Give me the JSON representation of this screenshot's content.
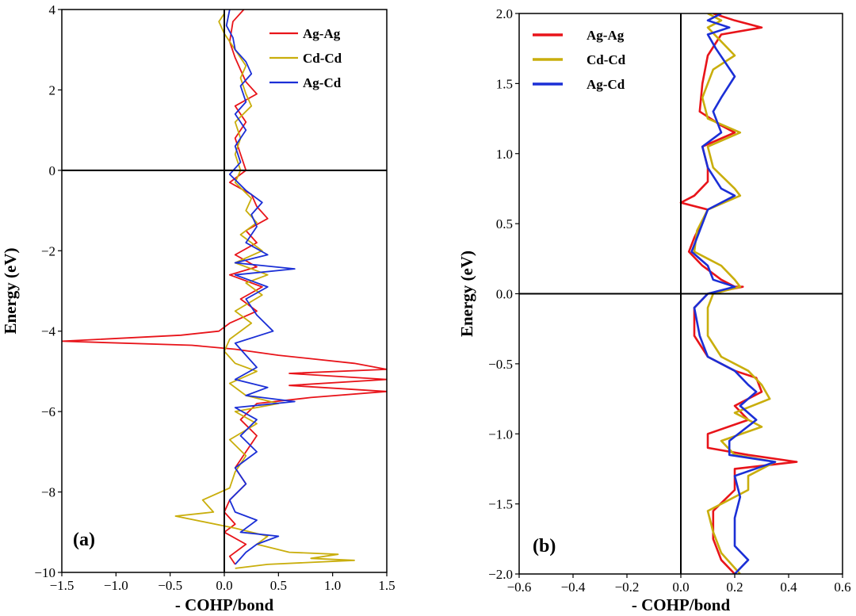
{
  "colors": {
    "Ag-Ag": "#e8141a",
    "Cd-Cd": "#c9ae0c",
    "Ag-Cd": "#1b2fd6"
  },
  "chart_data": [
    {
      "type": "line",
      "panel_label": "(a)",
      "xlabel": "- COHP/bond",
      "ylabel": "Energy (eV)",
      "xlim": [
        -1.5,
        1.5
      ],
      "ylim": [
        -10,
        4
      ],
      "xticks": [
        -1.5,
        -1.0,
        -0.5,
        0.0,
        0.5,
        1.0,
        1.5
      ],
      "xtick_labels": [
        "−1.5",
        "−1.0",
        "−0.5",
        "0.0",
        "0.5",
        "1.0",
        "1.5"
      ],
      "yticks": [
        -10,
        -8,
        -6,
        -4,
        -2,
        0,
        2,
        4
      ],
      "ytick_labels": [
        "−10",
        "−8",
        "−6",
        "−4",
        "−2",
        "0",
        "2",
        "4"
      ],
      "legend": [
        "Ag-Ag",
        "Cd-Cd",
        "Ag-Cd"
      ],
      "legend_position": "top-right",
      "series": [
        {
          "name": "Ag-Ag",
          "points": [
            [
              0.18,
              4.0
            ],
            [
              0.08,
              3.7
            ],
            [
              0.05,
              3.2
            ],
            [
              0.1,
              2.8
            ],
            [
              0.15,
              2.5
            ],
            [
              0.2,
              2.2
            ],
            [
              0.3,
              1.9
            ],
            [
              0.1,
              1.6
            ],
            [
              0.2,
              1.2
            ],
            [
              0.1,
              0.8
            ],
            [
              0.15,
              0.4
            ],
            [
              0.2,
              0.0
            ],
            [
              0.05,
              -0.3
            ],
            [
              0.25,
              -0.6
            ],
            [
              0.3,
              -0.9
            ],
            [
              0.4,
              -1.2
            ],
            [
              0.2,
              -1.5
            ],
            [
              0.3,
              -1.8
            ],
            [
              0.1,
              -2.1
            ],
            [
              0.3,
              -2.4
            ],
            [
              0.05,
              -2.6
            ],
            [
              0.35,
              -2.9
            ],
            [
              0.15,
              -3.2
            ],
            [
              0.3,
              -3.5
            ],
            [
              0.05,
              -3.8
            ],
            [
              -0.05,
              -4.0
            ],
            [
              -0.4,
              -4.1
            ],
            [
              -1.5,
              -4.25
            ],
            [
              -0.3,
              -4.35
            ],
            [
              0.1,
              -4.45
            ],
            [
              0.5,
              -4.6
            ],
            [
              1.2,
              -4.8
            ],
            [
              1.5,
              -4.95
            ],
            [
              0.6,
              -5.05
            ],
            [
              1.5,
              -5.2
            ],
            [
              0.6,
              -5.35
            ],
            [
              1.5,
              -5.5
            ],
            [
              0.8,
              -5.65
            ],
            [
              0.3,
              -5.8
            ],
            [
              0.15,
              -6.2
            ],
            [
              0.3,
              -6.6
            ],
            [
              0.2,
              -7.0
            ],
            [
              0.1,
              -7.4
            ],
            [
              0.2,
              -7.8
            ],
            [
              0.05,
              -8.2
            ],
            [
              0.0,
              -8.5
            ],
            [
              0.1,
              -8.8
            ],
            [
              0.0,
              -9.0
            ],
            [
              0.2,
              -9.3
            ],
            [
              0.05,
              -9.6
            ],
            [
              0.1,
              -9.8
            ]
          ]
        },
        {
          "name": "Cd-Cd",
          "points": [
            [
              0.0,
              3.9
            ],
            [
              -0.05,
              3.7
            ],
            [
              0.0,
              3.4
            ],
            [
              0.1,
              3.0
            ],
            [
              0.2,
              2.6
            ],
            [
              0.15,
              2.3
            ],
            [
              0.2,
              1.9
            ],
            [
              0.25,
              1.6
            ],
            [
              0.1,
              1.2
            ],
            [
              0.15,
              0.8
            ],
            [
              0.1,
              0.4
            ],
            [
              0.15,
              0.0
            ],
            [
              0.1,
              -0.3
            ],
            [
              0.25,
              -0.7
            ],
            [
              0.2,
              -1.0
            ],
            [
              0.3,
              -1.3
            ],
            [
              0.15,
              -1.6
            ],
            [
              0.35,
              -2.0
            ],
            [
              0.1,
              -2.3
            ],
            [
              0.4,
              -2.6
            ],
            [
              0.2,
              -2.8
            ],
            [
              0.35,
              -3.1
            ],
            [
              0.1,
              -3.5
            ],
            [
              0.25,
              -3.8
            ],
            [
              0.05,
              -4.2
            ],
            [
              0.0,
              -4.5
            ],
            [
              0.1,
              -4.8
            ],
            [
              0.3,
              -5.0
            ],
            [
              0.05,
              -5.3
            ],
            [
              0.2,
              -5.6
            ],
            [
              0.5,
              -5.8
            ],
            [
              0.1,
              -6.0
            ],
            [
              0.3,
              -6.3
            ],
            [
              0.05,
              -6.7
            ],
            [
              0.2,
              -7.1
            ],
            [
              0.1,
              -7.5
            ],
            [
              0.05,
              -7.9
            ],
            [
              -0.2,
              -8.2
            ],
            [
              -0.1,
              -8.5
            ],
            [
              -0.45,
              -8.6
            ],
            [
              0.1,
              -8.9
            ],
            [
              0.4,
              -9.1
            ],
            [
              0.3,
              -9.3
            ],
            [
              0.6,
              -9.5
            ],
            [
              1.05,
              -9.55
            ],
            [
              0.8,
              -9.65
            ],
            [
              1.2,
              -9.7
            ],
            [
              0.4,
              -9.8
            ],
            [
              0.1,
              -9.9
            ]
          ]
        },
        {
          "name": "Ag-Cd",
          "points": [
            [
              0.05,
              4.0
            ],
            [
              0.02,
              3.6
            ],
            [
              0.08,
              3.3
            ],
            [
              0.1,
              3.0
            ],
            [
              0.2,
              2.7
            ],
            [
              0.25,
              2.4
            ],
            [
              0.15,
              2.1
            ],
            [
              0.2,
              1.7
            ],
            [
              0.1,
              1.4
            ],
            [
              0.2,
              1.0
            ],
            [
              0.1,
              0.6
            ],
            [
              0.15,
              0.2
            ],
            [
              0.05,
              -0.1
            ],
            [
              0.2,
              -0.5
            ],
            [
              0.35,
              -0.8
            ],
            [
              0.25,
              -1.1
            ],
            [
              0.3,
              -1.4
            ],
            [
              0.2,
              -1.8
            ],
            [
              0.4,
              -2.1
            ],
            [
              0.1,
              -2.3
            ],
            [
              0.65,
              -2.45
            ],
            [
              0.1,
              -2.6
            ],
            [
              0.4,
              -2.9
            ],
            [
              0.2,
              -3.2
            ],
            [
              0.3,
              -3.6
            ],
            [
              0.45,
              -4.0
            ],
            [
              0.1,
              -4.3
            ],
            [
              0.2,
              -4.6
            ],
            [
              0.3,
              -4.9
            ],
            [
              0.1,
              -5.2
            ],
            [
              0.4,
              -5.4
            ],
            [
              0.2,
              -5.6
            ],
            [
              0.65,
              -5.75
            ],
            [
              0.1,
              -5.9
            ],
            [
              0.3,
              -6.2
            ],
            [
              0.15,
              -6.6
            ],
            [
              0.3,
              -7.0
            ],
            [
              0.1,
              -7.4
            ],
            [
              0.2,
              -7.8
            ],
            [
              0.05,
              -8.2
            ],
            [
              0.1,
              -8.5
            ],
            [
              0.3,
              -8.7
            ],
            [
              0.15,
              -9.0
            ],
            [
              0.5,
              -9.1
            ],
            [
              0.3,
              -9.3
            ],
            [
              0.2,
              -9.5
            ],
            [
              0.1,
              -9.8
            ]
          ]
        }
      ]
    },
    {
      "type": "line",
      "panel_label": "(b)",
      "xlabel": "- COHP/bond",
      "ylabel": "Energy (eV)",
      "xlim": [
        -0.6,
        0.6
      ],
      "ylim": [
        -2.0,
        2.0
      ],
      "xticks": [
        -0.6,
        -0.4,
        -0.2,
        0.0,
        0.2,
        0.4,
        0.6
      ],
      "xtick_labels": [
        "−0.6",
        "−0.4",
        "−0.2",
        "0.0",
        "0.2",
        "0.4",
        "0.6"
      ],
      "yticks": [
        -2.0,
        -1.5,
        -1.0,
        -0.5,
        0.0,
        0.5,
        1.0,
        1.5,
        2.0
      ],
      "ytick_labels": [
        "−2.0",
        "−1.5",
        "−1.0",
        "−0.5",
        "0.0",
        "0.5",
        "1.0",
        "1.5",
        "2.0"
      ],
      "legend": [
        "Ag-Ag",
        "Cd-Cd",
        "Ag-Cd"
      ],
      "legend_position": "top-left",
      "series": [
        {
          "name": "Ag-Ag",
          "points": [
            [
              0.12,
              2.0
            ],
            [
              0.2,
              1.95
            ],
            [
              0.3,
              1.9
            ],
            [
              0.15,
              1.85
            ],
            [
              0.1,
              1.7
            ],
            [
              0.08,
              1.5
            ],
            [
              0.07,
              1.3
            ],
            [
              0.15,
              1.2
            ],
            [
              0.2,
              1.15
            ],
            [
              0.08,
              1.05
            ],
            [
              0.1,
              0.9
            ],
            [
              0.1,
              0.8
            ],
            [
              0.05,
              0.7
            ],
            [
              0.0,
              0.65
            ],
            [
              0.1,
              0.6
            ],
            [
              0.05,
              0.4
            ],
            [
              0.03,
              0.3
            ],
            [
              0.08,
              0.2
            ],
            [
              0.15,
              0.1
            ],
            [
              0.2,
              0.05
            ],
            [
              0.23,
              0.05
            ],
            [
              0.1,
              0.0
            ],
            [
              0.05,
              -0.1
            ],
            [
              0.05,
              -0.3
            ],
            [
              0.1,
              -0.45
            ],
            [
              0.2,
              -0.55
            ],
            [
              0.28,
              -0.6
            ],
            [
              0.3,
              -0.7
            ],
            [
              0.2,
              -0.8
            ],
            [
              0.25,
              -0.9
            ],
            [
              0.1,
              -1.0
            ],
            [
              0.1,
              -1.1
            ],
            [
              0.25,
              -1.15
            ],
            [
              0.43,
              -1.2
            ],
            [
              0.2,
              -1.25
            ],
            [
              0.2,
              -1.4
            ],
            [
              0.12,
              -1.55
            ],
            [
              0.12,
              -1.75
            ],
            [
              0.15,
              -1.9
            ],
            [
              0.2,
              -2.0
            ]
          ]
        },
        {
          "name": "Cd-Cd",
          "points": [
            [
              0.1,
              2.0
            ],
            [
              0.15,
              1.95
            ],
            [
              0.1,
              1.9
            ],
            [
              0.15,
              1.8
            ],
            [
              0.2,
              1.7
            ],
            [
              0.12,
              1.6
            ],
            [
              0.08,
              1.4
            ],
            [
              0.1,
              1.25
            ],
            [
              0.22,
              1.15
            ],
            [
              0.1,
              1.05
            ],
            [
              0.12,
              0.9
            ],
            [
              0.2,
              0.75
            ],
            [
              0.22,
              0.7
            ],
            [
              0.1,
              0.6
            ],
            [
              0.06,
              0.45
            ],
            [
              0.05,
              0.3
            ],
            [
              0.15,
              0.2
            ],
            [
              0.2,
              0.1
            ],
            [
              0.22,
              0.05
            ],
            [
              0.12,
              0.0
            ],
            [
              0.1,
              -0.1
            ],
            [
              0.1,
              -0.3
            ],
            [
              0.15,
              -0.45
            ],
            [
              0.25,
              -0.55
            ],
            [
              0.3,
              -0.65
            ],
            [
              0.33,
              -0.75
            ],
            [
              0.2,
              -0.85
            ],
            [
              0.3,
              -0.95
            ],
            [
              0.15,
              -1.05
            ],
            [
              0.2,
              -1.15
            ],
            [
              0.35,
              -1.2
            ],
            [
              0.25,
              -1.3
            ],
            [
              0.25,
              -1.4
            ],
            [
              0.1,
              -1.55
            ],
            [
              0.12,
              -1.7
            ],
            [
              0.15,
              -1.85
            ],
            [
              0.22,
              -2.0
            ]
          ]
        },
        {
          "name": "Ag-Cd",
          "points": [
            [
              0.15,
              2.0
            ],
            [
              0.1,
              1.95
            ],
            [
              0.18,
              1.9
            ],
            [
              0.1,
              1.85
            ],
            [
              0.13,
              1.75
            ],
            [
              0.2,
              1.55
            ],
            [
              0.15,
              1.4
            ],
            [
              0.12,
              1.3
            ],
            [
              0.15,
              1.15
            ],
            [
              0.08,
              1.05
            ],
            [
              0.1,
              0.9
            ],
            [
              0.15,
              0.75
            ],
            [
              0.2,
              0.7
            ],
            [
              0.1,
              0.6
            ],
            [
              0.07,
              0.45
            ],
            [
              0.04,
              0.3
            ],
            [
              0.1,
              0.2
            ],
            [
              0.12,
              0.1
            ],
            [
              0.2,
              0.05
            ],
            [
              0.1,
              0.0
            ],
            [
              0.05,
              -0.1
            ],
            [
              0.07,
              -0.3
            ],
            [
              0.1,
              -0.45
            ],
            [
              0.2,
              -0.55
            ],
            [
              0.25,
              -0.65
            ],
            [
              0.28,
              -0.7
            ],
            [
              0.22,
              -0.8
            ],
            [
              0.28,
              -0.9
            ],
            [
              0.18,
              -1.05
            ],
            [
              0.18,
              -1.15
            ],
            [
              0.35,
              -1.2
            ],
            [
              0.2,
              -1.3
            ],
            [
              0.22,
              -1.45
            ],
            [
              0.2,
              -1.6
            ],
            [
              0.2,
              -1.8
            ],
            [
              0.25,
              -1.9
            ],
            [
              0.2,
              -2.0
            ]
          ]
        }
      ]
    }
  ]
}
